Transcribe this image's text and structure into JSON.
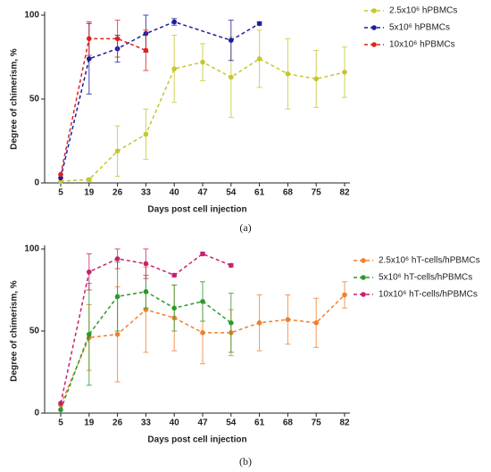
{
  "chart_data": [
    {
      "type": "line",
      "caption": "(a)",
      "xlabel": "Days post cell injection",
      "ylabel": "Degree of chimerism, %",
      "categories": [
        "5",
        "19",
        "26",
        "33",
        "40",
        "47",
        "54",
        "61",
        "68",
        "75",
        "82"
      ],
      "ylim": [
        0,
        100
      ],
      "yticks": [
        0,
        50,
        100
      ],
      "series": [
        {
          "name": "2.5x10⁶ hPBMCs",
          "color": "#c6c62e",
          "x": [
            "5",
            "19",
            "26",
            "33",
            "40",
            "47",
            "54",
            "61",
            "68",
            "75",
            "82"
          ],
          "values": [
            1,
            2,
            19,
            29,
            68,
            72,
            63,
            74,
            65,
            62,
            66
          ],
          "errors": [
            0,
            1,
            15,
            15,
            20,
            11,
            24,
            17,
            21,
            17,
            15
          ]
        },
        {
          "name": "5x10⁶ hPBMCs",
          "color": "#1c1c9e",
          "x": [
            "5",
            "19",
            "26",
            "33",
            "40",
            "54",
            "61"
          ],
          "values": [
            3,
            74,
            80,
            89,
            96,
            85,
            95
          ],
          "errors": [
            0,
            21,
            8,
            11,
            2,
            12,
            1
          ]
        },
        {
          "name": "10x10⁶ hPBMCs",
          "color": "#e0201c",
          "x": [
            "5",
            "19",
            "26",
            "33"
          ],
          "values": [
            5,
            86,
            86,
            79
          ],
          "errors": [
            0,
            10,
            11,
            12
          ]
        }
      ]
    },
    {
      "type": "line",
      "caption": "(b)",
      "xlabel": "Days post cell injection",
      "ylabel": "Degree of chimerism, %",
      "categories": [
        "5",
        "19",
        "26",
        "33",
        "40",
        "47",
        "54",
        "61",
        "68",
        "75",
        "82"
      ],
      "ylim": [
        0,
        100
      ],
      "yticks": [
        0,
        50,
        100
      ],
      "series": [
        {
          "name": "2.5x10⁶ hT-cells/hPBMCs",
          "color": "#f07f2e",
          "x": [
            "5",
            "19",
            "26",
            "33",
            "40",
            "47",
            "54",
            "61",
            "68",
            "75",
            "82"
          ],
          "values": [
            5,
            46,
            48,
            63,
            58,
            49,
            49,
            55,
            57,
            55,
            72
          ],
          "errors": [
            0,
            20,
            29,
            26,
            20,
            19,
            14,
            17,
            15,
            15,
            8
          ]
        },
        {
          "name": "5x10⁶ hT-cells/hPBMCs",
          "color": "#2a9a2a",
          "x": [
            "5",
            "19",
            "26",
            "33",
            "40",
            "47",
            "54"
          ],
          "values": [
            2,
            48,
            71,
            74,
            64,
            68,
            55
          ],
          "errors": [
            0,
            31,
            21,
            10,
            14,
            12,
            18
          ]
        },
        {
          "name": "10x10⁶ hT-cells/hPBMCs",
          "color": "#c8206e",
          "x": [
            "5",
            "19",
            "26",
            "33",
            "40",
            "47",
            "54"
          ],
          "values": [
            6,
            86,
            94,
            91,
            84,
            97,
            90
          ],
          "errors": [
            0,
            11,
            6,
            9,
            1,
            1,
            1
          ]
        }
      ]
    }
  ]
}
